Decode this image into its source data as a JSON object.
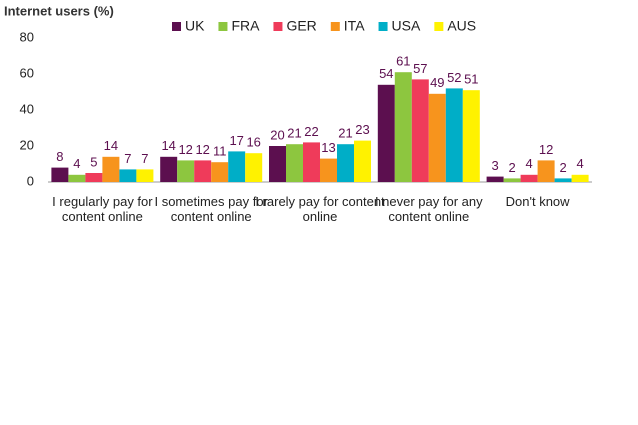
{
  "chart_data": {
    "type": "bar",
    "y_label": "Internet users (%)",
    "categories": [
      "I regularly pay for content online",
      "I sometimes pay for content online",
      "I rarely pay for content online",
      "I never pay for any content online",
      "Don't know"
    ],
    "series": [
      {
        "name": "UK",
        "color": "#5c0f4f",
        "values": [
          8,
          14,
          20,
          54,
          3
        ]
      },
      {
        "name": "FRA",
        "color": "#8dc63f",
        "values": [
          4,
          12,
          21,
          61,
          2
        ]
      },
      {
        "name": "GER",
        "color": "#ef3b5a",
        "values": [
          5,
          12,
          22,
          57,
          4
        ]
      },
      {
        "name": "ITA",
        "color": "#f7941d",
        "values": [
          14,
          11,
          13,
          49,
          12
        ]
      },
      {
        "name": "USA",
        "color": "#00aec7",
        "values": [
          7,
          17,
          21,
          52,
          2
        ]
      },
      {
        "name": "AUS",
        "color": "#fff200",
        "values": [
          7,
          16,
          23,
          51,
          4
        ]
      }
    ],
    "ylim": [
      0,
      80
    ],
    "yticks": [
      0,
      20,
      40,
      60,
      80
    ],
    "grid": false,
    "legend": "top",
    "value_label_color": "#5c0f4f"
  }
}
